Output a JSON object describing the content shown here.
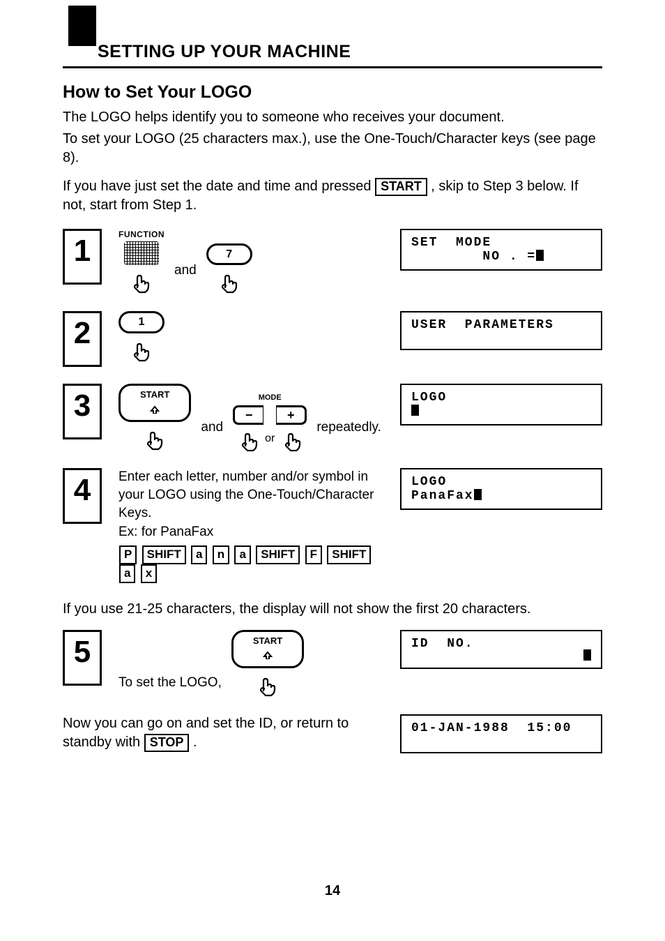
{
  "colors": {
    "fg": "#000000",
    "bg": "#ffffff"
  },
  "header": {
    "section": "SETTING UP YOUR MACHINE"
  },
  "title": "How to Set Your LOGO",
  "intro1": "The LOGO helps identify you to someone who receives your document.",
  "intro2": "To set your LOGO (25 characters max.), use the One-Touch/Character keys (see page 8).",
  "intro3a": "If you have just set the date and time and pressed ",
  "intro3b": " , skip to Step 3 below.  If not, start from Step 1.",
  "start_label": "START",
  "stop_label": "STOP",
  "steps": {
    "s1": {
      "num": "1",
      "func_label": "FUNCTION",
      "key7": "7",
      "and": "and",
      "display_l1": "SET  MODE",
      "display_l2": "        NO . ="
    },
    "s2": {
      "num": "2",
      "key1": "1",
      "display": "USER  PARAMETERS"
    },
    "s3": {
      "num": "3",
      "start": "START",
      "mode": "MODE",
      "minus": "−",
      "plus": "+",
      "and": "and",
      "or": "or",
      "rep": "repeatedly.",
      "display_l1": "LOGO"
    },
    "s4": {
      "num": "4",
      "text": "Enter each letter, number and/or symbol in your LOGO using the One-Touch/Character Keys.",
      "ex": "Ex:  for PanaFax",
      "seq": [
        "P",
        "SHIFT",
        "a",
        "n",
        "a",
        "SHIFT",
        "F",
        "SHIFT",
        "a",
        "x"
      ],
      "display_l1": "LOGO",
      "display_l2": "PanaFax"
    }
  },
  "note21": "If you use 21-25 characters, the display will not show the first 20 characters.",
  "step5": {
    "num": "5",
    "text": "To set the LOGO,",
    "start": "START",
    "display": "ID  NO."
  },
  "closing_a": "Now you can go on and set the ID, or return to standby with ",
  "closing_b": " .",
  "standby_display": "01-JAN-1988  15:00",
  "page_number": "14"
}
